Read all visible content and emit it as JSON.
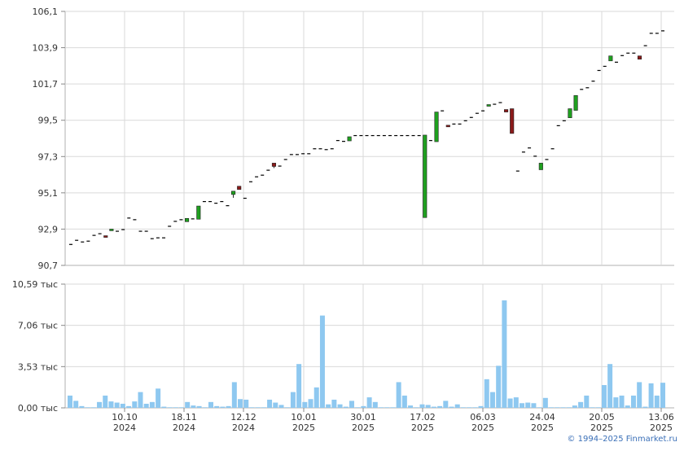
{
  "chart_data": [
    {
      "type": "candlestick",
      "y_ticks": [
        "106,1",
        "103,9",
        "101,7",
        "99,5",
        "97,3",
        "95,1",
        "92,9",
        "90,7"
      ],
      "ylim": [
        90.7,
        106.1
      ],
      "x_tick_labels": [
        [
          "10.10",
          "2024"
        ],
        [
          "18.11",
          "2024"
        ],
        [
          "12.12",
          "2024"
        ],
        [
          "10.01",
          "2025"
        ],
        [
          "30.01",
          "2025"
        ],
        [
          "17.02",
          "2025"
        ],
        [
          "06.03",
          "2025"
        ],
        [
          "24.04",
          "2025"
        ],
        [
          "20.05",
          "2025"
        ],
        [
          "13.06",
          "2025"
        ]
      ],
      "grid": true,
      "colors": {
        "up": "#1fa01f",
        "down": "#8b1a1a",
        "flat": "#000000",
        "grid": "#d9d9d9"
      },
      "ohlc": [
        [
          92.0,
          92.0,
          92.0,
          92.0
        ],
        [
          92.25,
          92.25,
          92.25,
          92.25
        ],
        [
          92.15,
          92.15,
          92.15,
          92.15
        ],
        [
          92.2,
          92.2,
          92.2,
          92.2
        ],
        [
          92.55,
          92.55,
          92.55,
          92.55
        ],
        [
          92.65,
          92.65,
          92.65,
          92.65
        ],
        [
          92.5,
          92.5,
          92.4,
          92.4
        ],
        [
          92.8,
          92.9,
          92.8,
          92.9
        ],
        [
          92.8,
          92.8,
          92.8,
          92.8
        ],
        [
          92.9,
          92.9,
          92.9,
          92.9
        ],
        [
          93.6,
          93.6,
          93.6,
          93.6
        ],
        [
          93.5,
          93.5,
          93.5,
          93.5
        ],
        [
          92.8,
          92.8,
          92.8,
          92.8
        ],
        [
          92.8,
          92.8,
          92.8,
          92.8
        ],
        [
          92.35,
          92.35,
          92.35,
          92.35
        ],
        [
          92.4,
          92.4,
          92.4,
          92.4
        ],
        [
          92.4,
          92.4,
          92.4,
          92.4
        ],
        [
          93.1,
          93.1,
          93.1,
          93.1
        ],
        [
          93.4,
          93.4,
          93.4,
          93.4
        ],
        [
          93.5,
          93.5,
          93.5,
          93.5
        ],
        [
          93.35,
          93.55,
          93.35,
          93.55
        ],
        [
          93.55,
          93.55,
          93.55,
          93.55
        ],
        [
          93.5,
          94.3,
          93.5,
          94.3
        ],
        [
          94.6,
          94.6,
          94.6,
          94.6
        ],
        [
          94.6,
          94.6,
          94.6,
          94.6
        ],
        [
          94.5,
          94.5,
          94.5,
          94.5
        ],
        [
          94.6,
          94.6,
          94.6,
          94.6
        ],
        [
          94.35,
          94.35,
          94.35,
          94.35
        ],
        [
          95.0,
          95.2,
          94.8,
          95.2
        ],
        [
          95.5,
          95.5,
          95.3,
          95.3
        ],
        [
          94.8,
          94.8,
          94.8,
          94.8
        ],
        [
          95.8,
          95.8,
          95.8,
          95.8
        ],
        [
          96.1,
          96.1,
          96.1,
          96.1
        ],
        [
          96.2,
          96.2,
          96.2,
          96.2
        ],
        [
          96.5,
          96.5,
          96.5,
          96.5
        ],
        [
          96.9,
          96.9,
          96.6,
          96.7
        ],
        [
          96.75,
          96.75,
          96.75,
          96.75
        ],
        [
          97.15,
          97.15,
          97.15,
          97.15
        ],
        [
          97.45,
          97.45,
          97.45,
          97.45
        ],
        [
          97.45,
          97.45,
          97.45,
          97.45
        ],
        [
          97.5,
          97.5,
          97.5,
          97.5
        ],
        [
          97.5,
          97.5,
          97.5,
          97.5
        ],
        [
          97.8,
          97.8,
          97.8,
          97.8
        ],
        [
          97.8,
          97.8,
          97.8,
          97.8
        ],
        [
          97.75,
          97.75,
          97.75,
          97.75
        ],
        [
          97.8,
          97.8,
          97.8,
          97.8
        ],
        [
          98.3,
          98.3,
          98.3,
          98.3
        ],
        [
          98.25,
          98.25,
          98.25,
          98.25
        ],
        [
          98.25,
          98.5,
          98.25,
          98.5
        ],
        [
          98.6,
          98.6,
          98.6,
          98.6
        ],
        [
          98.6,
          98.6,
          98.6,
          98.6
        ],
        [
          98.6,
          98.6,
          98.6,
          98.6
        ],
        [
          98.6,
          98.6,
          98.6,
          98.6
        ],
        [
          98.6,
          98.6,
          98.6,
          98.6
        ],
        [
          98.6,
          98.6,
          98.6,
          98.6
        ],
        [
          98.6,
          98.6,
          98.6,
          98.6
        ],
        [
          98.6,
          98.6,
          98.6,
          98.6
        ],
        [
          98.6,
          98.6,
          98.6,
          98.6
        ],
        [
          98.6,
          98.6,
          98.6,
          98.6
        ],
        [
          98.6,
          98.6,
          98.6,
          98.6
        ],
        [
          98.6,
          98.6,
          98.6,
          98.6
        ],
        [
          93.6,
          98.6,
          93.6,
          98.6
        ],
        [
          98.3,
          98.3,
          98.3,
          98.3
        ],
        [
          98.2,
          100.0,
          98.2,
          100.0
        ],
        [
          100.1,
          100.1,
          100.1,
          100.1
        ],
        [
          99.2,
          99.2,
          99.1,
          99.1
        ],
        [
          99.3,
          99.3,
          99.3,
          99.3
        ],
        [
          99.3,
          99.3,
          99.3,
          99.3
        ],
        [
          99.5,
          99.5,
          99.5,
          99.5
        ],
        [
          99.7,
          99.7,
          99.7,
          99.7
        ],
        [
          99.95,
          99.95,
          99.95,
          99.95
        ],
        [
          100.1,
          100.1,
          100.1,
          100.1
        ],
        [
          100.35,
          100.45,
          100.35,
          100.45
        ],
        [
          100.5,
          100.5,
          100.5,
          100.5
        ],
        [
          100.6,
          100.6,
          100.6,
          100.6
        ],
        [
          100.15,
          100.15,
          100.0,
          100.0
        ],
        [
          100.2,
          100.2,
          98.7,
          98.7
        ],
        [
          96.45,
          96.45,
          96.45,
          96.45
        ],
        [
          97.6,
          97.6,
          97.6,
          97.6
        ],
        [
          97.85,
          97.85,
          97.85,
          97.85
        ],
        [
          97.35,
          97.35,
          97.35,
          97.35
        ],
        [
          96.5,
          96.9,
          96.5,
          96.9
        ],
        [
          97.15,
          97.15,
          97.15,
          97.15
        ],
        [
          97.8,
          97.8,
          97.8,
          97.8
        ],
        [
          99.2,
          99.2,
          99.2,
          99.2
        ],
        [
          99.5,
          99.5,
          99.5,
          99.5
        ],
        [
          99.65,
          100.2,
          99.65,
          100.2
        ],
        [
          100.1,
          101.0,
          100.1,
          101.0
        ],
        [
          101.4,
          101.4,
          101.4,
          101.4
        ],
        [
          101.5,
          101.5,
          101.5,
          101.5
        ],
        [
          101.9,
          101.9,
          101.9,
          101.9
        ],
        [
          102.55,
          102.55,
          102.55,
          102.55
        ],
        [
          102.8,
          102.8,
          102.8,
          102.8
        ],
        [
          103.1,
          103.4,
          103.1,
          103.4
        ],
        [
          103.05,
          103.05,
          103.05,
          103.05
        ],
        [
          103.45,
          103.45,
          103.45,
          103.45
        ],
        [
          103.6,
          103.6,
          103.6,
          103.6
        ],
        [
          103.6,
          103.6,
          103.6,
          103.6
        ],
        [
          103.4,
          103.4,
          103.2,
          103.2
        ],
        [
          104.05,
          104.05,
          104.05,
          104.05
        ],
        [
          104.8,
          104.8,
          104.8,
          104.8
        ],
        [
          104.8,
          104.8,
          104.8,
          104.8
        ],
        [
          104.95,
          104.95,
          104.95,
          104.95
        ]
      ]
    },
    {
      "type": "bar",
      "y_ticks": [
        "10,59 тыс",
        "7,06 тыс",
        "3,53 тыс",
        "0,00 тыс"
      ],
      "ylim": [
        0,
        10.59
      ],
      "units": "тыс",
      "bar_color": "#8ec8f0",
      "values": [
        1.05,
        0.6,
        0.15,
        0.05,
        0.05,
        0.5,
        1.05,
        0.55,
        0.45,
        0.35,
        0.15,
        0.55,
        1.35,
        0.35,
        0.5,
        1.65,
        0.1,
        0.05,
        0.05,
        0.05,
        0.5,
        0.2,
        0.15,
        0.05,
        0.5,
        0.15,
        0.1,
        0.15,
        2.2,
        0.75,
        0.7,
        0.05,
        0.05,
        0.05,
        0.7,
        0.45,
        0.25,
        0.05,
        1.35,
        3.75,
        0.5,
        0.75,
        1.75,
        7.9,
        0.3,
        0.7,
        0.3,
        0.1,
        0.6,
        0.05,
        0.15,
        0.9,
        0.5,
        0.05,
        0.05,
        0.05,
        2.2,
        1.05,
        0.2,
        0.05,
        0.3,
        0.25,
        0.1,
        0.15,
        0.6,
        0.1,
        0.3,
        0.05,
        0.05,
        0.05,
        0.15,
        2.45,
        1.35,
        3.6,
        9.2,
        0.8,
        0.9,
        0.4,
        0.45,
        0.4,
        0.05,
        0.85,
        0.05,
        0.05,
        0.05,
        0.05,
        0.2,
        0.5,
        1.05,
        0.05,
        0.05,
        1.95,
        3.75,
        0.9,
        1.05,
        0.2,
        1.05,
        2.2,
        0.1,
        2.1,
        1.05,
        2.15
      ]
    }
  ],
  "footer": {
    "copyright": "© 1994–2025 Finmarket.ru"
  }
}
